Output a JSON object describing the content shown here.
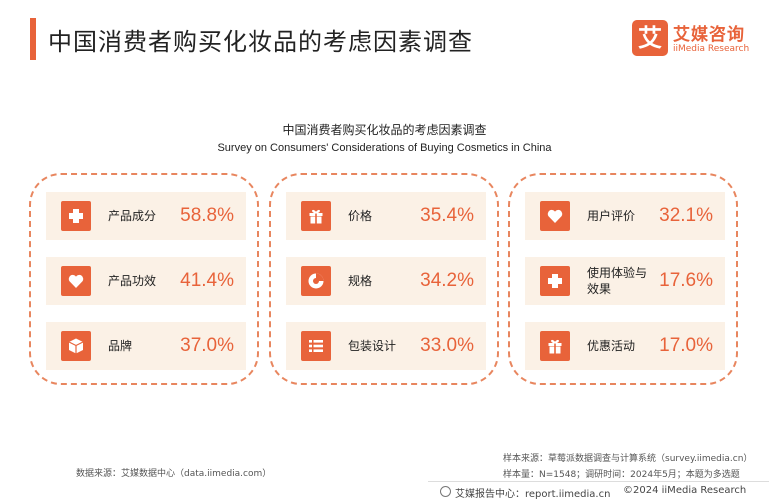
{
  "header": {
    "title": "中国消费者购买化妆品的考虑因素调查",
    "logo_mark": "艾",
    "logo_cn": "艾媒咨询",
    "logo_en": "iiMedia Research"
  },
  "chart_data": {
    "type": "table",
    "title": "中国消费者购买化妆品的考虑因素调查",
    "subtitle": "Survey on Consumers' Considerations of Buying Cosmetics in China",
    "unit": "%",
    "groups": [
      {
        "items": [
          {
            "label": "产品成分",
            "value": 58.8,
            "display": "58.8%",
            "icon": "plus-icon"
          },
          {
            "label": "产品功效",
            "value": 41.4,
            "display": "41.4%",
            "icon": "heart-icon"
          },
          {
            "label": "品牌",
            "value": 37.0,
            "display": "37.0%",
            "icon": "box-icon"
          }
        ]
      },
      {
        "items": [
          {
            "label": "价格",
            "value": 35.4,
            "display": "35.4%",
            "icon": "gift-icon"
          },
          {
            "label": "规格",
            "value": 34.2,
            "display": "34.2%",
            "icon": "pie-icon"
          },
          {
            "label": "包装设计",
            "value": 33.0,
            "display": "33.0%",
            "icon": "list-icon"
          }
        ]
      },
      {
        "items": [
          {
            "label": "用户评价",
            "value": 32.1,
            "display": "32.1%",
            "icon": "heart-icon"
          },
          {
            "label": "使用体验与效果",
            "value": 17.6,
            "display": "17.6%",
            "icon": "plus-icon"
          },
          {
            "label": "优惠活动",
            "value": 17.0,
            "display": "17.0%",
            "icon": "gift-icon"
          }
        ]
      }
    ]
  },
  "footer": {
    "data_source": "数据来源：艾媒数据中心（data.iimedia.com）",
    "sample_source": "样本来源：草莓派数据调查与计算系统（survey.iimedia.cn）",
    "sample_info": "样本量：N=1548；调研时间：2024年5月；本题为多选题",
    "report_center": "艾媒报告中心：report.iimedia.cn",
    "copyright": "©2024  iiMedia Research"
  },
  "colors": {
    "accent": "#e8633a",
    "card_bg": "#fbf1e6",
    "border": "#e8865f"
  }
}
